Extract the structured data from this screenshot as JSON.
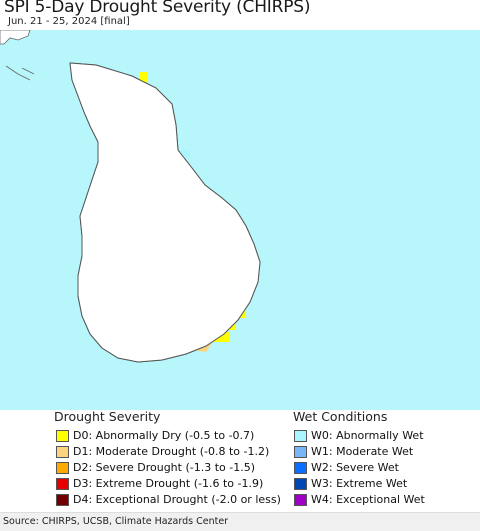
{
  "header": {
    "title": "SPI 5-Day Drought Severity (CHIRPS)",
    "subtitle": "Jun. 21 - 25, 2024 [final]"
  },
  "map": {
    "ocean_color": "#b7f7fb",
    "land_color": "#ffffff",
    "boundary_color": "#7a7a7a"
  },
  "legend": {
    "drought_title": "Drought Severity",
    "drought": [
      {
        "label": "D0: Abnormally Dry (-0.5 to -0.7)",
        "color": "#ffff00"
      },
      {
        "label": "D1: Moderate Drought (-0.8 to -1.2)",
        "color": "#fcd37f"
      },
      {
        "label": "D2: Severe Drought (-1.3 to -1.5)",
        "color": "#ffaa00"
      },
      {
        "label": "D3: Extreme Drought (-1.6 to -1.9)",
        "color": "#e60000"
      },
      {
        "label": "D4: Exceptional Drought (-2.0 or less)",
        "color": "#730000"
      }
    ],
    "wet_title": "Wet Conditions",
    "wet": [
      {
        "label": "W0: Abnormally Wet",
        "color": "#aaf5ff"
      },
      {
        "label": "W1: Moderate Wet",
        "color": "#7ab6f5"
      },
      {
        "label": "W2: Severe Wet",
        "color": "#0a6eff"
      },
      {
        "label": "W3: Extreme Wet",
        "color": "#0046b4"
      },
      {
        "label": "W4: Exceptional Wet",
        "color": "#a000c8"
      }
    ]
  },
  "footer": {
    "source": "Source: CHIRPS, UCSB, Climate Hazards Center"
  }
}
